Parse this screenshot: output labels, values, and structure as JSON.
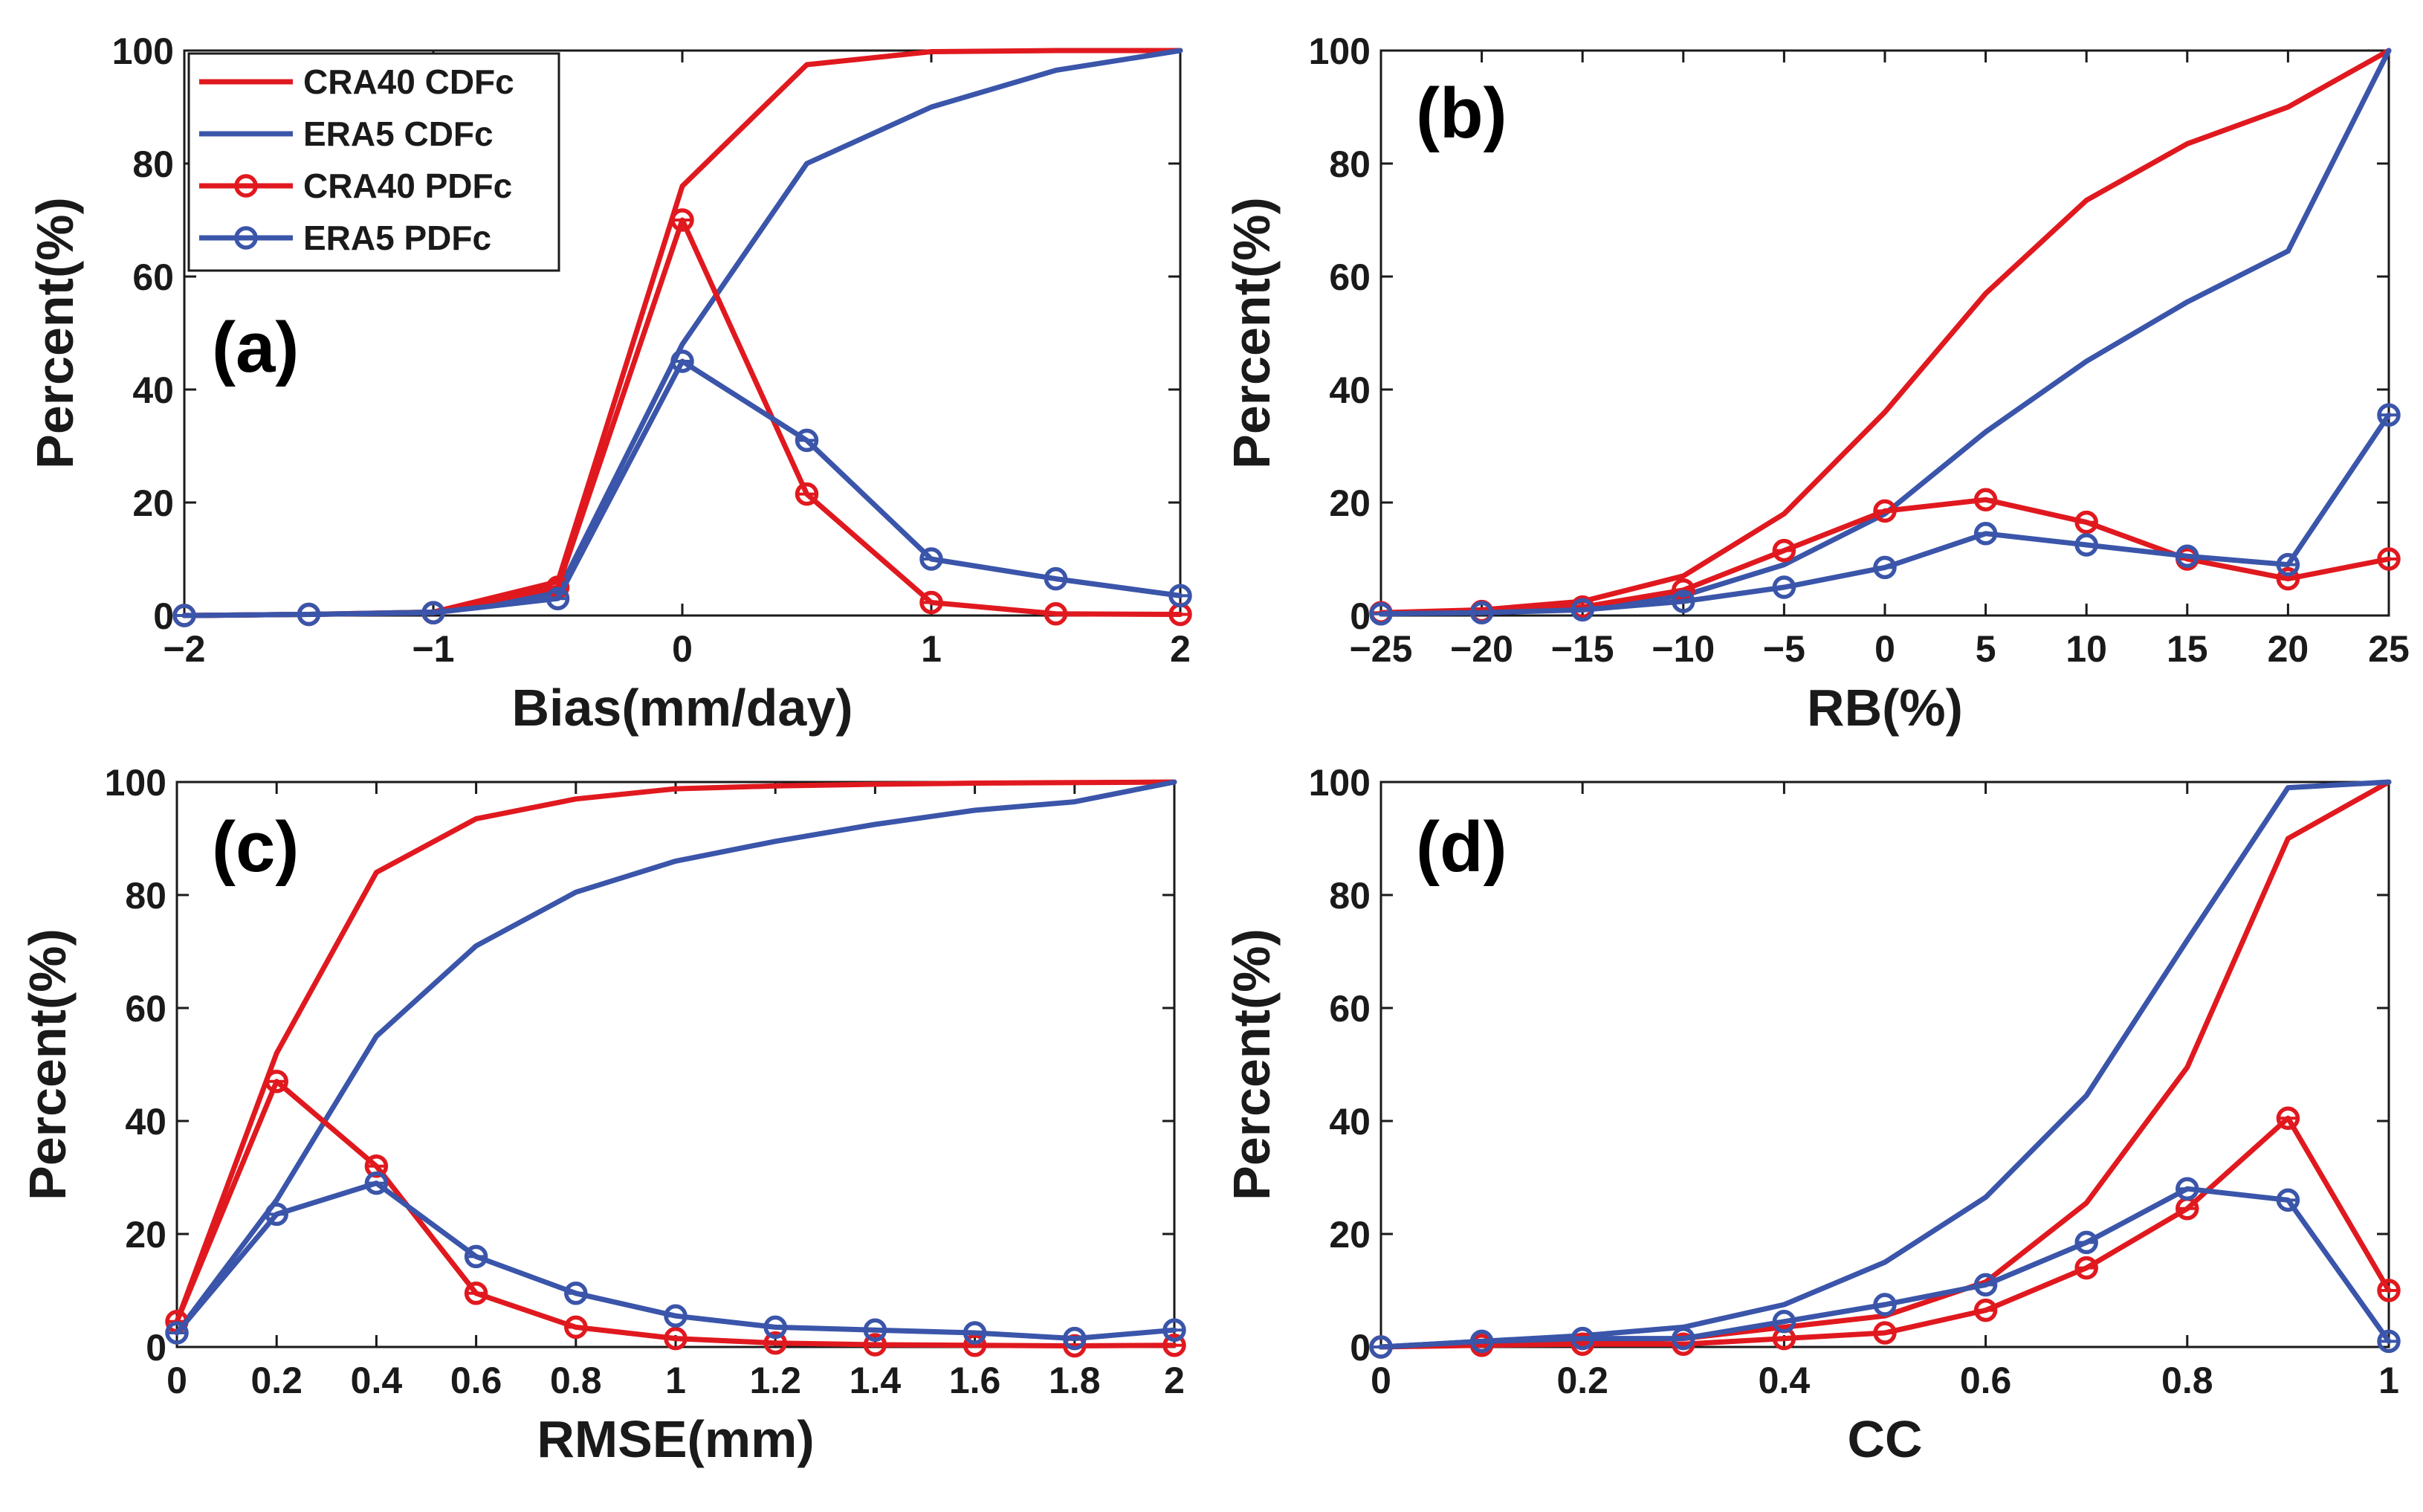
{
  "colors": {
    "cra40": "#e0191f",
    "era5": "#3a55a9",
    "axis": "#1a1a1a"
  },
  "legend": [
    {
      "label": "CRA40 CDFc",
      "series": "cra40",
      "marker": false
    },
    {
      "label": "ERA5 CDFc",
      "series": "era5",
      "marker": false
    },
    {
      "label": "CRA40 PDFc",
      "series": "cra40",
      "marker": true
    },
    {
      "label": "ERA5 PDFc",
      "series": "era5",
      "marker": true
    }
  ],
  "chart_data": [
    {
      "type": "line",
      "panel": "(a)",
      "xlabel": "Bias(mm/day)",
      "ylabel": "Percent(%)",
      "xlim": [
        -2,
        2
      ],
      "ylim": [
        0,
        100
      ],
      "xticks": [
        -2,
        -1,
        0,
        1,
        2
      ],
      "xtick_labels": [
        "−2",
        "−1",
        "0",
        "1",
        "2"
      ],
      "yticks": [
        0,
        20,
        40,
        60,
        80,
        100
      ],
      "x": [
        -2,
        -1.5,
        -1,
        -0.5,
        0,
        0.5,
        1,
        1.5,
        2
      ],
      "series": [
        {
          "name": "CRA40 CDFc",
          "color": "cra40",
          "marker": false,
          "values": [
            0,
            0.2,
            0.6,
            6,
            76,
            97.5,
            99.8,
            100,
            100
          ]
        },
        {
          "name": "ERA5 CDFc",
          "color": "era5",
          "marker": false,
          "values": [
            0,
            0.2,
            0.6,
            4,
            48,
            80,
            90,
            96.5,
            100
          ]
        },
        {
          "name": "CRA40 PDFc",
          "color": "cra40",
          "marker": true,
          "values": [
            0,
            0.2,
            0.5,
            5,
            70,
            21.5,
            2.3,
            0.3,
            0.2
          ]
        },
        {
          "name": "ERA5 PDFc",
          "color": "era5",
          "marker": true,
          "values": [
            0,
            0.2,
            0.5,
            3,
            45,
            31,
            10,
            6.5,
            3.5
          ]
        }
      ]
    },
    {
      "type": "line",
      "panel": "(b)",
      "xlabel": "RB(%)",
      "ylabel": "Percent(%)",
      "xlim": [
        -25,
        25
      ],
      "ylim": [
        0,
        100
      ],
      "xticks": [
        -25,
        -20,
        -15,
        -10,
        -5,
        0,
        5,
        10,
        15,
        20,
        25
      ],
      "xtick_labels": [
        "−25",
        "−20",
        "−15",
        "−10",
        "−5",
        "0",
        "5",
        "10",
        "15",
        "20",
        "25"
      ],
      "yticks": [
        0,
        20,
        40,
        60,
        80,
        100
      ],
      "x": [
        -25,
        -20,
        -15,
        -10,
        -5,
        0,
        5,
        10,
        15,
        20,
        25
      ],
      "series": [
        {
          "name": "CRA40 CDFc",
          "color": "cra40",
          "marker": false,
          "values": [
            0.5,
            1,
            2.5,
            7,
            18,
            36,
            57,
            73.5,
            83.5,
            90,
            100
          ]
        },
        {
          "name": "ERA5 CDFc",
          "color": "era5",
          "marker": false,
          "values": [
            0.3,
            0.7,
            1.5,
            3.5,
            9,
            18,
            32.5,
            45,
            55.5,
            64.5,
            100
          ]
        },
        {
          "name": "CRA40 PDFc",
          "color": "cra40",
          "marker": true,
          "values": [
            0.5,
            0.7,
            1.5,
            4.5,
            11.5,
            18.5,
            20.5,
            16.5,
            10,
            6.5,
            10
          ]
        },
        {
          "name": "ERA5 PDFc",
          "color": "era5",
          "marker": true,
          "values": [
            0.3,
            0.5,
            1,
            2.5,
            5,
            8.5,
            14.5,
            12.5,
            10.5,
            9,
            35.5
          ]
        }
      ]
    },
    {
      "type": "line",
      "panel": "(c)",
      "xlabel": "RMSE(mm)",
      "ylabel": "Percent(%)",
      "xlim": [
        0,
        2
      ],
      "ylim": [
        0,
        100
      ],
      "xticks": [
        0,
        0.2,
        0.4,
        0.6,
        0.8,
        1,
        1.2,
        1.4,
        1.6,
        1.8,
        2
      ],
      "xtick_labels": [
        "0",
        "0.2",
        "0.4",
        "0.6",
        "0.8",
        "1",
        "1.2",
        "1.4",
        "1.6",
        "1.8",
        "2"
      ],
      "yticks": [
        0,
        20,
        40,
        60,
        80,
        100
      ],
      "x": [
        0,
        0.2,
        0.4,
        0.6,
        0.8,
        1,
        1.2,
        1.4,
        1.6,
        1.8,
        2
      ],
      "series": [
        {
          "name": "CRA40 CDFc",
          "color": "cra40",
          "marker": false,
          "values": [
            4.5,
            52,
            84,
            93.5,
            97,
            98.8,
            99.3,
            99.6,
            99.8,
            99.9,
            100
          ]
        },
        {
          "name": "ERA5 CDFc",
          "color": "era5",
          "marker": false,
          "values": [
            2.5,
            26,
            55,
            71,
            80.5,
            86,
            89.5,
            92.5,
            95,
            96.5,
            100
          ]
        },
        {
          "name": "CRA40 PDFc",
          "color": "cra40",
          "marker": true,
          "values": [
            4.5,
            47,
            32,
            9.5,
            3.5,
            1.5,
            0.7,
            0.4,
            0.3,
            0.2,
            0.3
          ]
        },
        {
          "name": "ERA5 PDFc",
          "color": "era5",
          "marker": true,
          "values": [
            2.5,
            23.5,
            29,
            16,
            9.5,
            5.5,
            3.5,
            3,
            2.5,
            1.5,
            3
          ]
        }
      ]
    },
    {
      "type": "line",
      "panel": "(d)",
      "xlabel": "CC",
      "ylabel": "Percent(%)",
      "xlim": [
        0,
        1
      ],
      "ylim": [
        0,
        100
      ],
      "xticks": [
        0,
        0.2,
        0.4,
        0.6,
        0.8,
        1
      ],
      "xtick_labels": [
        "0",
        "0.2",
        "0.4",
        "0.6",
        "0.8",
        "1"
      ],
      "yticks": [
        0,
        20,
        40,
        60,
        80,
        100
      ],
      "x": [
        0,
        0.1,
        0.2,
        0.3,
        0.4,
        0.5,
        0.6,
        0.7,
        0.8,
        0.9,
        1
      ],
      "series": [
        {
          "name": "CRA40 CDFc",
          "color": "cra40",
          "marker": false,
          "values": [
            0,
            0.5,
            1,
            1.5,
            3.5,
            5.5,
            11.5,
            25.5,
            49.5,
            90,
            100
          ]
        },
        {
          "name": "ERA5 CDFc",
          "color": "era5",
          "marker": false,
          "values": [
            0,
            1,
            2,
            3.5,
            7.5,
            15,
            26.5,
            44.5,
            72,
            99,
            100
          ]
        },
        {
          "name": "CRA40 PDFc",
          "color": "cra40",
          "marker": true,
          "values": [
            0,
            0.3,
            0.5,
            0.5,
            1.5,
            2.5,
            6.5,
            14,
            24.5,
            40.5,
            10
          ]
        },
        {
          "name": "ERA5 PDFc",
          "color": "era5",
          "marker": true,
          "values": [
            0,
            1,
            1.5,
            1.5,
            4.5,
            7.5,
            11,
            18.5,
            28,
            26,
            1
          ]
        }
      ]
    }
  ]
}
